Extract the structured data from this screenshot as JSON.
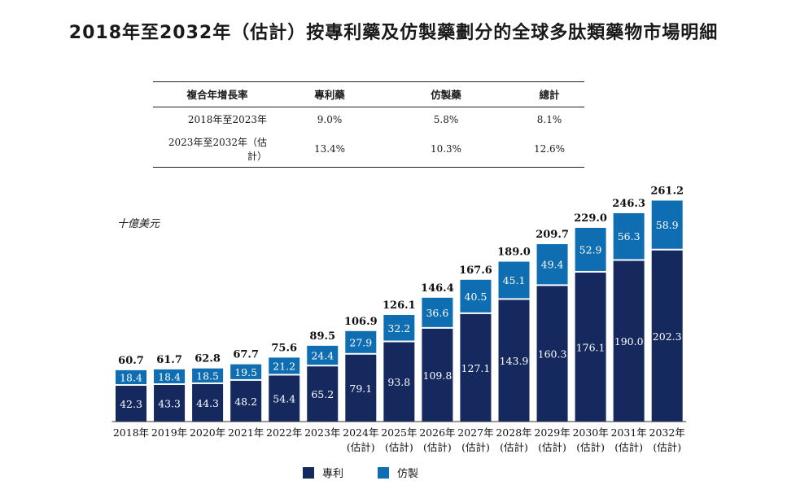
{
  "title": "2018年至2032年（估計）按專利藥及仿製藥劃分的全球多肽類藥物市場明細",
  "cagr_table": {
    "headers": [
      "複合年增長率",
      "專利藥",
      "仿製藥",
      "總計"
    ],
    "rows": [
      {
        "period": "2018年至2023年",
        "patent": "9.0%",
        "generic": "5.8%",
        "total": "8.1%"
      },
      {
        "period": "2023年至2032年（估計）",
        "patent": "13.4%",
        "generic": "10.3%",
        "total": "12.6%"
      }
    ]
  },
  "colors": {
    "patent": "#15295e",
    "generic": "#0f6db2"
  },
  "chart_data": {
    "type": "bar",
    "stacked": true,
    "unit_label": "十億美元",
    "categories": [
      "2018年",
      "2019年",
      "2020年",
      "2021年",
      "2022年",
      "2023年",
      "2024年",
      "2025年",
      "2026年",
      "2027年",
      "2028年",
      "2029年",
      "2030年",
      "2031年",
      "2032年"
    ],
    "category_sublabels": [
      "",
      "",
      "",
      "",
      "",
      "",
      "(估計)",
      "(估計)",
      "(估計)",
      "(估計)",
      "(估計)",
      "(估計)",
      "(估計)",
      "(估計)",
      "(估計)"
    ],
    "series": [
      {
        "name": "專利",
        "values": [
          42.3,
          43.3,
          44.3,
          48.2,
          54.4,
          65.2,
          79.1,
          93.8,
          109.8,
          127.1,
          143.9,
          160.3,
          176.1,
          190.0,
          202.3
        ],
        "labels": [
          "42.3",
          "43.3",
          "44.3",
          "48.2",
          "54.4",
          "65.2",
          "79.1",
          "93.8",
          "109.8",
          "127.1",
          "143.9",
          "160.3",
          "176.1",
          "190.0",
          "202.3"
        ]
      },
      {
        "name": "仿製",
        "values": [
          18.4,
          18.4,
          18.5,
          19.5,
          21.2,
          24.4,
          27.9,
          32.2,
          36.6,
          40.5,
          45.1,
          49.4,
          52.9,
          56.3,
          58.9
        ],
        "labels": [
          "18.4",
          "18.4",
          "18.5",
          "19.5",
          "21.2",
          "24.4",
          "27.9",
          "32.2",
          "36.6",
          "40.5",
          "45.1",
          "49.4",
          "52.9",
          "56.3",
          "58.9"
        ]
      }
    ],
    "totals": [
      60.7,
      61.7,
      62.8,
      67.7,
      75.6,
      89.5,
      106.9,
      126.1,
      146.4,
      167.6,
      189.0,
      209.7,
      229.0,
      246.3,
      261.2
    ],
    "total_labels": [
      "60.7",
      "61.7",
      "62.8",
      "67.7",
      "75.6",
      "89.5",
      "106.9",
      "126.1",
      "146.4",
      "167.6",
      "189.0",
      "209.7",
      "229.0",
      "246.3",
      "261.2"
    ],
    "legend_position": "bottom",
    "grid": false
  }
}
